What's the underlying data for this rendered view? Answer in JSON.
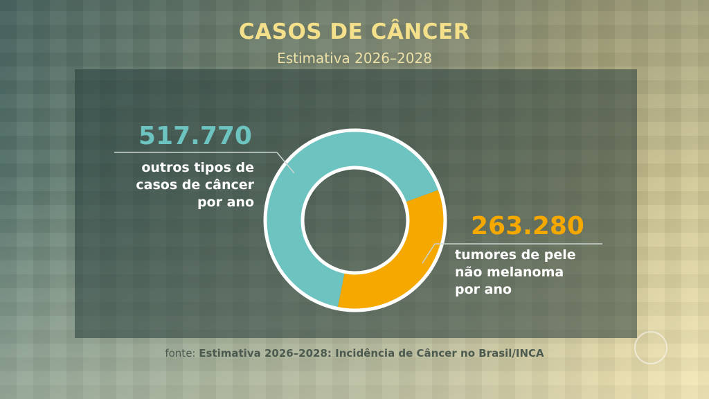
{
  "title": "CASOS DE CÂNCER",
  "subtitle": "Estimativa 2026–2028",
  "source_prefix": "fonte:",
  "source_text": "Estimativa 2026–2028: Incidência de Câncer no Brasil/INCA",
  "colors": {
    "teal": "#6cc3bf",
    "orange": "#f5a800",
    "title": "#f4e08a"
  },
  "chart_data": {
    "type": "pie",
    "variant": "donut",
    "title": "CASOS DE CÂNCER",
    "subtitle": "Estimativa 2026–2028",
    "slices": [
      {
        "value": 517770,
        "label_value": "517.770",
        "label_lines": [
          "outros tipos de",
          "casos de câncer",
          "por ano"
        ],
        "color": "#6cc3bf"
      },
      {
        "value": 263280,
        "label_value": "263.280",
        "label_lines": [
          "tumores de pele",
          "não melanoma",
          "por ano"
        ],
        "color": "#f5a800"
      }
    ]
  }
}
